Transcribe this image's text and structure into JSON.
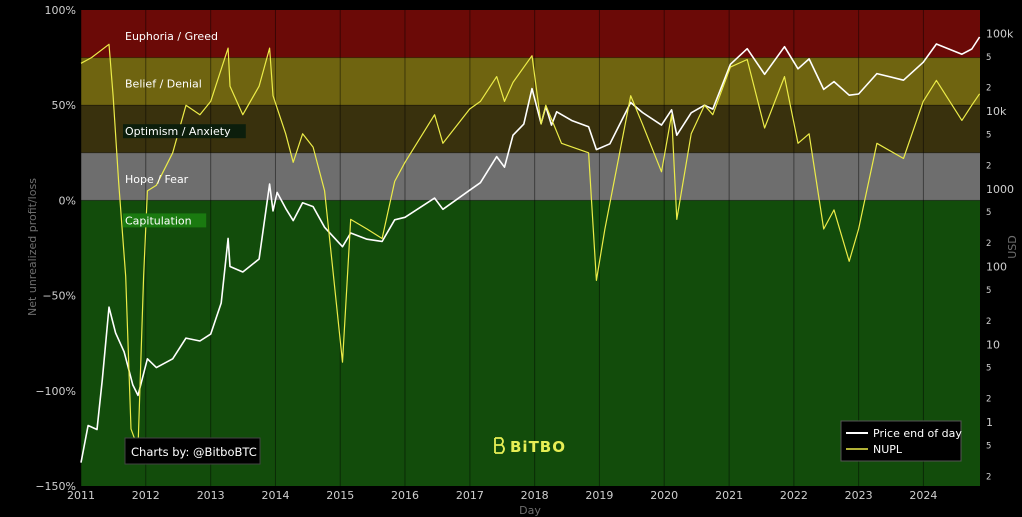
{
  "chart_data": {
    "type": "line",
    "xlabel": "Day",
    "ylabel_left": "Net unrealized profit/loss",
    "ylabel_right": "USD",
    "x_range": [
      "2011-01-01",
      "2024-11-15"
    ],
    "x_ticks": [
      "2011",
      "2012",
      "2013",
      "2014",
      "2015",
      "2016",
      "2017",
      "2018",
      "2019",
      "2020",
      "2021",
      "2022",
      "2023",
      "2024"
    ],
    "y_left_range": [
      -1.5,
      1.0
    ],
    "y_left_ticks": [
      {
        "value": 1.0,
        "label": "100%"
      },
      {
        "value": 0.5,
        "label": "50%"
      },
      {
        "value": 0.0,
        "label": "0%"
      },
      {
        "value": -0.5,
        "label": "−50%"
      },
      {
        "value": -1.0,
        "label": "−100%"
      },
      {
        "value": -1.5,
        "label": "−150%"
      }
    ],
    "y_right_scale": "log",
    "y_right_range": [
      0.15,
      200000
    ],
    "y_right_major_ticks": [
      {
        "value": 100000,
        "label": "100k"
      },
      {
        "value": 10000,
        "label": "10k"
      },
      {
        "value": 1000,
        "label": "1000"
      },
      {
        "value": 100,
        "label": "100"
      },
      {
        "value": 10,
        "label": "10"
      },
      {
        "value": 1,
        "label": "1"
      }
    ],
    "y_right_minor_ticks": [
      {
        "value": 50000,
        "label": "5"
      },
      {
        "value": 20000,
        "label": "2"
      },
      {
        "value": 5000,
        "label": "5"
      },
      {
        "value": 2000,
        "label": "2"
      },
      {
        "value": 500,
        "label": "5"
      },
      {
        "value": 200,
        "label": "2"
      },
      {
        "value": 50,
        "label": "5"
      },
      {
        "value": 20,
        "label": "2"
      },
      {
        "value": 5,
        "label": "5"
      },
      {
        "value": 2,
        "label": "2"
      },
      {
        "value": 0.5,
        "label": "5"
      },
      {
        "value": 0.2,
        "label": "2"
      }
    ],
    "zones": [
      {
        "name": "Euphoria / Greed",
        "from": 0.75,
        "to": 1.0,
        "color": "#6b0a07"
      },
      {
        "name": "Belief / Denial",
        "from": 0.5,
        "to": 0.75,
        "color": "#6f6410"
      },
      {
        "name": "Optimism / Anxiety",
        "from": 0.25,
        "to": 0.5,
        "color": "#39310d"
      },
      {
        "name": "Hope / Fear",
        "from": 0.0,
        "to": 0.25,
        "color": "#6e6e6e"
      },
      {
        "name": "Capitulation",
        "from": -1.5,
        "to": 0.0,
        "color": "#124c0b"
      }
    ],
    "series": [
      {
        "name": "Price end of day",
        "axis": "right",
        "color": "#ffffff",
        "points": [
          [
            "2011-01-01",
            0.3
          ],
          [
            "2011-02-10",
            0.9
          ],
          [
            "2011-04-01",
            0.8
          ],
          [
            "2011-05-01",
            3.5
          ],
          [
            "2011-06-08",
            30
          ],
          [
            "2011-07-15",
            14
          ],
          [
            "2011-09-01",
            8
          ],
          [
            "2011-10-20",
            3
          ],
          [
            "2011-11-18",
            2.2
          ],
          [
            "2012-01-10",
            6.5
          ],
          [
            "2012-03-01",
            5
          ],
          [
            "2012-06-01",
            6.5
          ],
          [
            "2012-08-15",
            12
          ],
          [
            "2012-11-01",
            11
          ],
          [
            "2013-01-01",
            13.5
          ],
          [
            "2013-03-01",
            34
          ],
          [
            "2013-04-09",
            230
          ],
          [
            "2013-04-20",
            100
          ],
          [
            "2013-07-01",
            85
          ],
          [
            "2013-10-01",
            125
          ],
          [
            "2013-11-29",
            1150
          ],
          [
            "2013-12-18",
            520
          ],
          [
            "2014-01-10",
            900
          ],
          [
            "2014-02-28",
            560
          ],
          [
            "2014-04-11",
            390
          ],
          [
            "2014-06-03",
            660
          ],
          [
            "2014-08-01",
            590
          ],
          [
            "2014-10-05",
            320
          ],
          [
            "2015-01-14",
            180
          ],
          [
            "2015-03-01",
            270
          ],
          [
            "2015-06-01",
            225
          ],
          [
            "2015-08-25",
            210
          ],
          [
            "2015-11-04",
            400
          ],
          [
            "2016-01-01",
            430
          ],
          [
            "2016-06-16",
            760
          ],
          [
            "2016-08-02",
            545
          ],
          [
            "2016-12-31",
            960
          ],
          [
            "2017-03-01",
            1200
          ],
          [
            "2017-06-01",
            2600
          ],
          [
            "2017-07-15",
            1900
          ],
          [
            "2017-09-01",
            4900
          ],
          [
            "2017-11-01",
            6800
          ],
          [
            "2017-12-17",
            19500
          ],
          [
            "2018-02-06",
            6900
          ],
          [
            "2018-03-05",
            11500
          ],
          [
            "2018-04-06",
            6600
          ],
          [
            "2018-05-05",
            9800
          ],
          [
            "2018-08-01",
            7500
          ],
          [
            "2018-11-01",
            6300
          ],
          [
            "2018-12-15",
            3200
          ],
          [
            "2019-03-01",
            3800
          ],
          [
            "2019-06-26",
            12900
          ],
          [
            "2019-09-01",
            9600
          ],
          [
            "2019-12-17",
            6600
          ],
          [
            "2020-02-12",
            10400
          ],
          [
            "2020-03-12",
            4900
          ],
          [
            "2020-06-01",
            9500
          ],
          [
            "2020-08-15",
            11900
          ],
          [
            "2020-10-01",
            10600
          ],
          [
            "2021-01-08",
            40000
          ],
          [
            "2021-04-13",
            63500
          ],
          [
            "2021-07-20",
            29800
          ],
          [
            "2021-11-09",
            67500
          ],
          [
            "2022-01-24",
            35000
          ],
          [
            "2022-03-28",
            47000
          ],
          [
            "2022-06-18",
            19000
          ],
          [
            "2022-08-15",
            24000
          ],
          [
            "2022-11-09",
            16000
          ],
          [
            "2023-01-01",
            16600
          ],
          [
            "2023-04-14",
            30400
          ],
          [
            "2023-09-11",
            25000
          ],
          [
            "2023-12-31",
            42500
          ],
          [
            "2024-03-14",
            73000
          ],
          [
            "2024-08-05",
            54000
          ],
          [
            "2024-09-30",
            63000
          ],
          [
            "2024-11-13",
            90000
          ]
        ]
      },
      {
        "name": "NUPL",
        "axis": "left",
        "color": "#ecec48",
        "points": [
          [
            "2011-01-01",
            0.72
          ],
          [
            "2011-03-01",
            0.75
          ],
          [
            "2011-06-08",
            0.82
          ],
          [
            "2011-07-01",
            0.55
          ],
          [
            "2011-08-01",
            0.1
          ],
          [
            "2011-09-10",
            -0.4
          ],
          [
            "2011-10-10",
            -1.2
          ],
          [
            "2011-11-18",
            -1.3
          ],
          [
            "2011-12-20",
            -0.4
          ],
          [
            "2012-01-10",
            0.05
          ],
          [
            "2012-03-01",
            0.08
          ],
          [
            "2012-06-01",
            0.25
          ],
          [
            "2012-08-15",
            0.5
          ],
          [
            "2012-11-01",
            0.45
          ],
          [
            "2013-01-01",
            0.52
          ],
          [
            "2013-04-09",
            0.8
          ],
          [
            "2013-04-20",
            0.6
          ],
          [
            "2013-07-01",
            0.45
          ],
          [
            "2013-10-01",
            0.6
          ],
          [
            "2013-11-29",
            0.8
          ],
          [
            "2013-12-18",
            0.55
          ],
          [
            "2014-02-28",
            0.35
          ],
          [
            "2014-04-11",
            0.2
          ],
          [
            "2014-06-03",
            0.35
          ],
          [
            "2014-08-01",
            0.28
          ],
          [
            "2014-10-05",
            0.05
          ],
          [
            "2015-01-14",
            -0.85
          ],
          [
            "2015-03-01",
            -0.1
          ],
          [
            "2015-06-01",
            -0.15
          ],
          [
            "2015-08-25",
            -0.2
          ],
          [
            "2015-11-04",
            0.1
          ],
          [
            "2016-01-01",
            0.2
          ],
          [
            "2016-06-16",
            0.45
          ],
          [
            "2016-08-02",
            0.3
          ],
          [
            "2016-12-31",
            0.48
          ],
          [
            "2017-03-01",
            0.52
          ],
          [
            "2017-06-01",
            0.65
          ],
          [
            "2017-07-15",
            0.52
          ],
          [
            "2017-09-01",
            0.62
          ],
          [
            "2017-12-17",
            0.76
          ],
          [
            "2018-02-06",
            0.4
          ],
          [
            "2018-03-05",
            0.5
          ],
          [
            "2018-06-01",
            0.3
          ],
          [
            "2018-11-01",
            0.25
          ],
          [
            "2018-12-15",
            -0.42
          ],
          [
            "2019-02-01",
            -0.15
          ],
          [
            "2019-06-26",
            0.55
          ],
          [
            "2019-09-01",
            0.4
          ],
          [
            "2019-12-17",
            0.15
          ],
          [
            "2020-02-12",
            0.45
          ],
          [
            "2020-03-12",
            -0.1
          ],
          [
            "2020-06-01",
            0.35
          ],
          [
            "2020-08-15",
            0.5
          ],
          [
            "2020-10-01",
            0.45
          ],
          [
            "2021-01-08",
            0.7
          ],
          [
            "2021-04-13",
            0.74
          ],
          [
            "2021-07-20",
            0.38
          ],
          [
            "2021-11-09",
            0.65
          ],
          [
            "2022-01-24",
            0.3
          ],
          [
            "2022-03-28",
            0.35
          ],
          [
            "2022-06-18",
            -0.15
          ],
          [
            "2022-08-15",
            -0.05
          ],
          [
            "2022-11-09",
            -0.32
          ],
          [
            "2023-01-01",
            -0.15
          ],
          [
            "2023-04-14",
            0.3
          ],
          [
            "2023-09-11",
            0.22
          ],
          [
            "2023-12-31",
            0.52
          ],
          [
            "2024-03-14",
            0.63
          ],
          [
            "2024-08-05",
            0.42
          ],
          [
            "2024-09-30",
            0.5
          ],
          [
            "2024-11-13",
            0.56
          ]
        ]
      }
    ],
    "legend": {
      "placement": "bottom-right",
      "entries": [
        {
          "label": "Price end of day",
          "color": "#ffffff"
        },
        {
          "label": "NUPL",
          "color": "#ecec48"
        }
      ]
    },
    "annotations": {
      "credit": "Charts by: @BitboBTC",
      "logo": "BiTBO"
    }
  }
}
